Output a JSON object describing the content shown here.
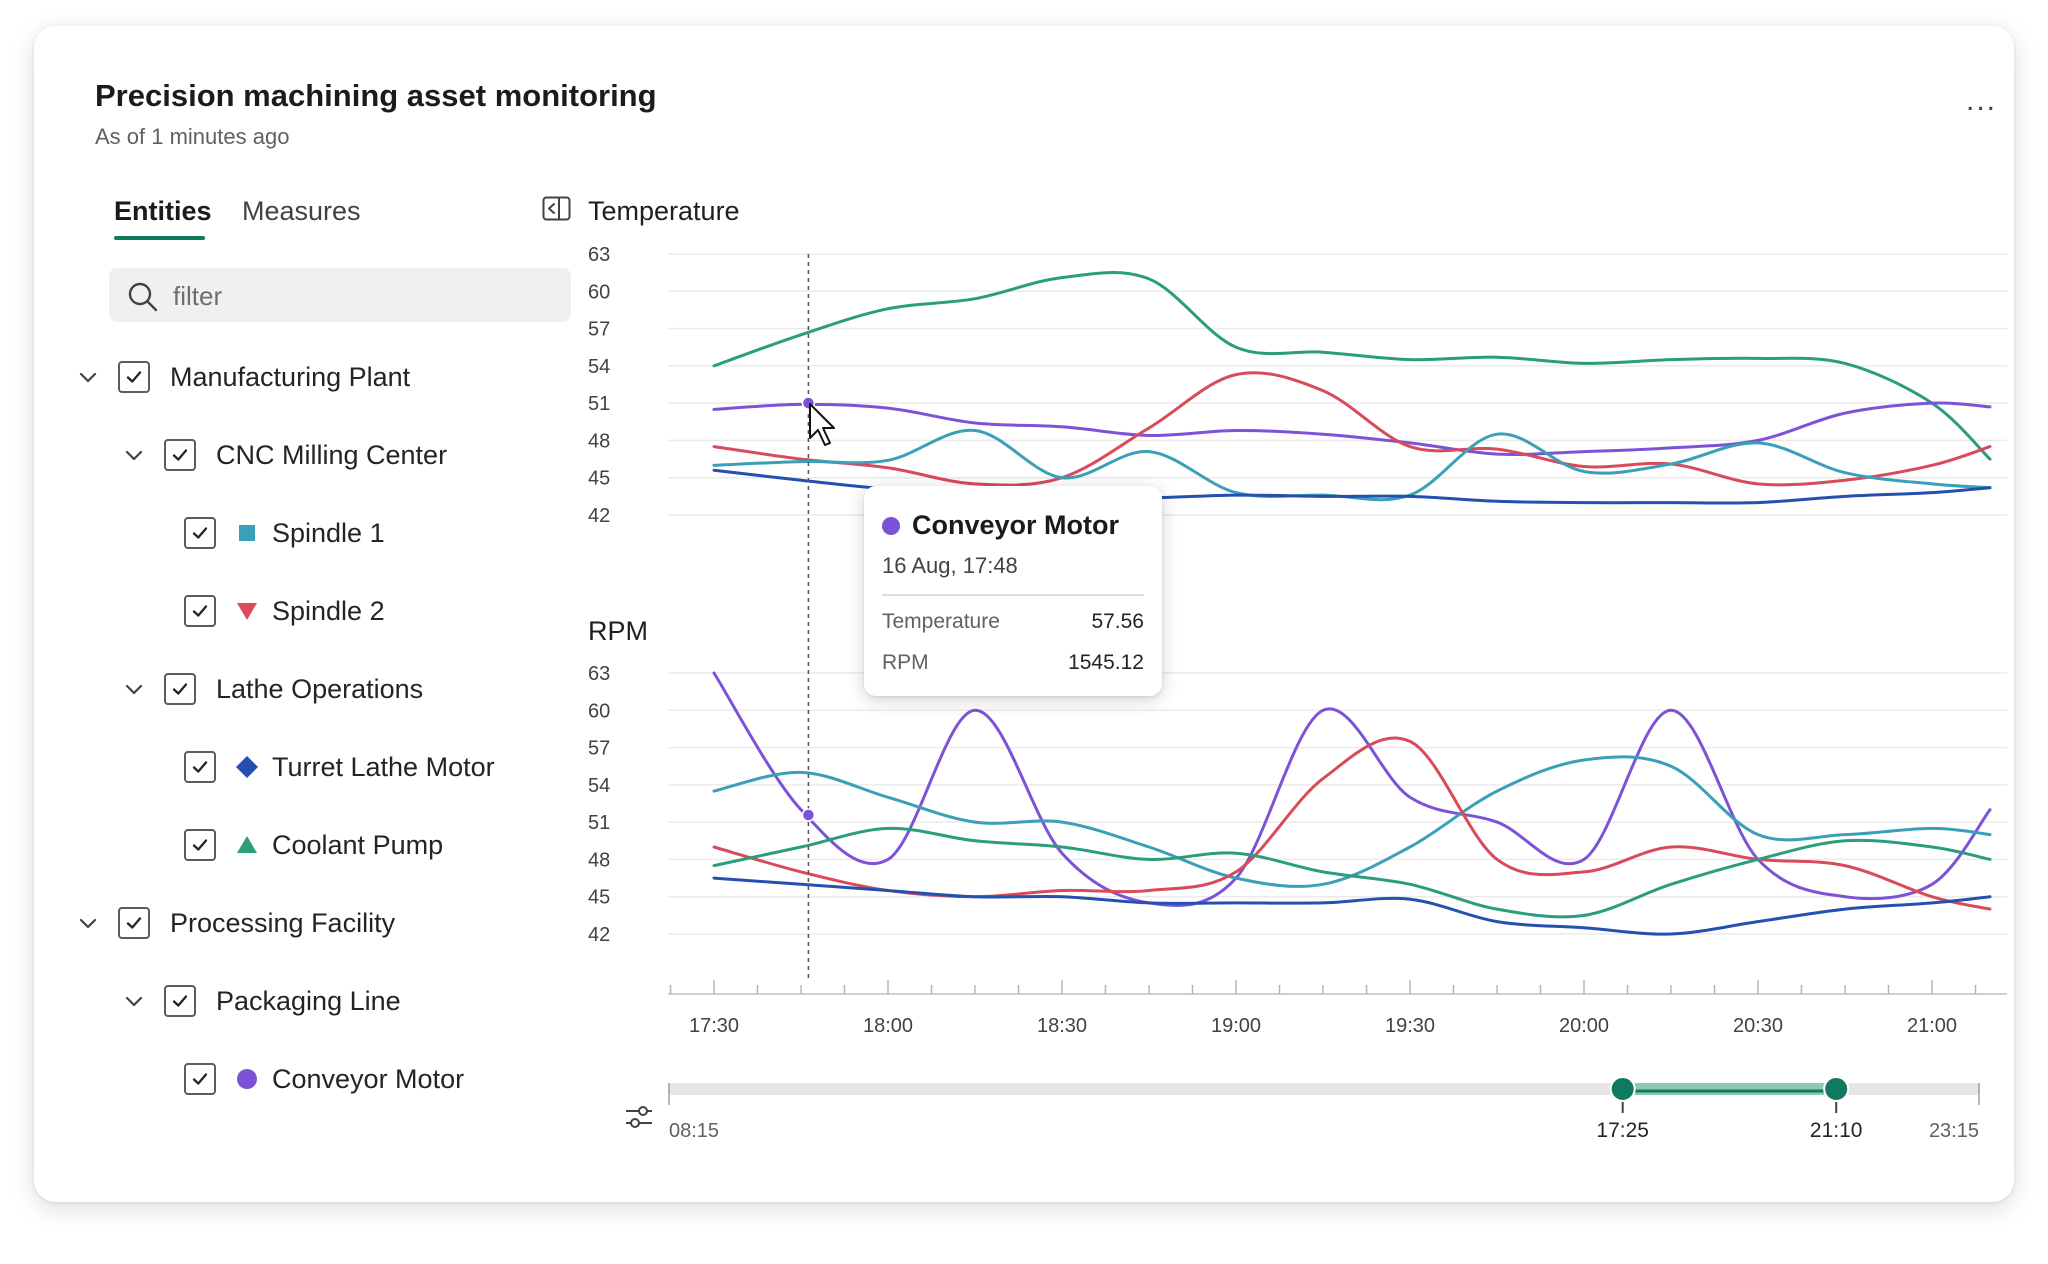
{
  "header": {
    "title": "Precision machining asset monitoring",
    "subtitle": "As of 1 minutes ago",
    "more_label": "..."
  },
  "tabs": [
    {
      "label": "Entities",
      "active": true
    },
    {
      "label": "Measures",
      "active": false
    }
  ],
  "search": {
    "placeholder": "filter",
    "value": ""
  },
  "tree": {
    "manufacturing_plant": "Manufacturing Plant",
    "cnc_milling_center": "CNC Milling Center",
    "spindle_1": "Spindle 1",
    "spindle_2": "Spindle 2",
    "lathe_operations": "Lathe Operations",
    "turret_lathe_motor": "Turret Lathe Motor",
    "coolant_pump": "Coolant Pump",
    "processing_facility": "Processing Facility",
    "packaging_line": "Packaging Line",
    "conveyor_motor": "Conveyor Motor"
  },
  "colors": {
    "spindle_1": "#3a9fb8",
    "spindle_2": "#d94a5a",
    "turret_lathe_motor": "#2450b0",
    "coolant_pump": "#2a9d7c",
    "conveyor_motor": "#7d52d6",
    "accent": "#0f7a5f"
  },
  "icons": {
    "more": "more-horizontal-icon",
    "collapse": "panel-collapse-icon",
    "search": "search-icon",
    "chevron": "chevron-down-icon",
    "check": "checkmark-icon",
    "filter": "slider-settings-icon"
  },
  "tooltip": {
    "entity": "Conveyor Motor",
    "date": "16 Aug, 17:48",
    "rows": [
      {
        "key": "Temperature",
        "value": "57.56"
      },
      {
        "key": "RPM",
        "value": "1545.12"
      }
    ]
  },
  "time_axis": {
    "ticks": [
      "17:30",
      "18:00",
      "18:30",
      "19:00",
      "19:30",
      "20:00",
      "20:30",
      "21:00"
    ]
  },
  "range_slider": {
    "start_label": "08:15",
    "end_label": "23:15",
    "handle_start": "17:25",
    "handle_end": "21:10",
    "handle_start_fraction": 0.728,
    "handle_end_fraction": 0.891
  },
  "chart_data": [
    {
      "type": "line",
      "title": "Temperature",
      "y_ticks": [
        "63",
        "60",
        "57",
        "54",
        "51",
        "48",
        "45",
        "42"
      ],
      "ylim": [
        42,
        63
      ],
      "x": [
        "17:30",
        "17:45",
        "18:00",
        "18:15",
        "18:30",
        "18:45",
        "19:00",
        "19:15",
        "19:30",
        "19:45",
        "20:00",
        "20:15",
        "20:30",
        "20:45",
        "21:00",
        "21:10"
      ],
      "grid": true,
      "series": [
        {
          "name": "Coolant Pump",
          "color": "#2a9d7c",
          "values": [
            54.0,
            56.5,
            58.6,
            59.4,
            61.1,
            61.0,
            55.5,
            55.1,
            54.5,
            54.7,
            54.2,
            54.5,
            54.6,
            54.2,
            51.0,
            46.5
          ]
        },
        {
          "name": "Conveyor Motor",
          "color": "#7d52d6",
          "values": [
            50.5,
            50.9,
            50.6,
            49.4,
            49.1,
            48.4,
            48.8,
            48.5,
            47.8,
            46.9,
            47.1,
            47.4,
            48.0,
            50.2,
            51.0,
            50.7
          ]
        },
        {
          "name": "Spindle 2",
          "color": "#d94a5a",
          "values": [
            47.5,
            46.5,
            45.8,
            44.5,
            45.0,
            49.0,
            53.3,
            52.0,
            47.5,
            47.3,
            45.9,
            46.1,
            44.5,
            44.8,
            46.0,
            47.5
          ]
        },
        {
          "name": "Spindle 1",
          "color": "#3a9fb8",
          "values": [
            46.0,
            46.3,
            46.4,
            48.8,
            45.0,
            47.1,
            43.8,
            43.6,
            43.6,
            48.5,
            45.5,
            46.1,
            47.8,
            45.4,
            44.5,
            44.2
          ]
        },
        {
          "name": "Turret Lathe Motor",
          "color": "#2450b0",
          "values": [
            45.6,
            44.8,
            44.1,
            43.9,
            43.6,
            43.4,
            43.6,
            43.5,
            43.5,
            43.1,
            43.0,
            43.0,
            43.0,
            43.5,
            43.8,
            44.2
          ]
        }
      ]
    },
    {
      "type": "line",
      "title": "RPM",
      "y_ticks": [
        "63",
        "60",
        "57",
        "54",
        "51",
        "48",
        "45",
        "42"
      ],
      "ylim": [
        42,
        63
      ],
      "x": [
        "17:30",
        "17:45",
        "18:00",
        "18:15",
        "18:30",
        "18:45",
        "19:00",
        "19:15",
        "19:30",
        "19:45",
        "20:00",
        "20:15",
        "20:30",
        "20:45",
        "21:00",
        "21:10"
      ],
      "grid": true,
      "series": [
        {
          "name": "Conveyor Motor",
          "color": "#7d52d6",
          "values": [
            63.0,
            52.0,
            48.0,
            60.0,
            48.5,
            44.5,
            46.5,
            60.0,
            53.0,
            51.0,
            48.0,
            60.0,
            48.0,
            45.0,
            46.0,
            52.0
          ]
        },
        {
          "name": "Spindle 1",
          "color": "#3a9fb8",
          "values": [
            53.5,
            55.0,
            53.0,
            51.0,
            51.0,
            49.0,
            46.5,
            46.0,
            49.0,
            53.5,
            56.0,
            55.5,
            50.0,
            50.0,
            50.5,
            50.0
          ]
        },
        {
          "name": "Spindle 2",
          "color": "#d94a5a",
          "values": [
            49.0,
            47.0,
            45.5,
            45.0,
            45.5,
            45.5,
            47.0,
            54.5,
            57.5,
            48.0,
            47.0,
            49.0,
            48.0,
            47.5,
            45.0,
            44.0
          ]
        },
        {
          "name": "Coolant Pump",
          "color": "#2a9d7c",
          "values": [
            47.5,
            49.0,
            50.5,
            49.5,
            49.0,
            48.0,
            48.5,
            47.0,
            46.0,
            44.0,
            43.5,
            46.0,
            48.0,
            49.5,
            49.0,
            48.0
          ]
        },
        {
          "name": "Turret Lathe Motor",
          "color": "#2450b0",
          "values": [
            46.5,
            46.0,
            45.5,
            45.0,
            45.0,
            44.5,
            44.5,
            44.5,
            44.8,
            43.0,
            42.5,
            42.0,
            43.0,
            44.0,
            44.5,
            45.0
          ]
        }
      ]
    }
  ]
}
